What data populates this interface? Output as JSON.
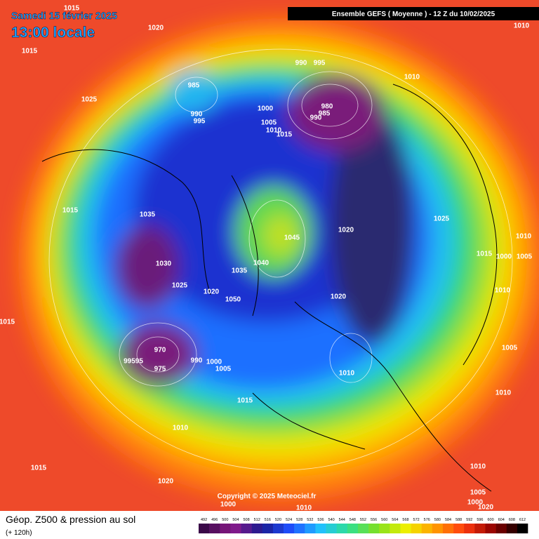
{
  "header": {
    "date": "Samedi 15 février 2025",
    "time": "13:00 locale",
    "model": "Ensemble GEFS  ( Moyenne )  -  12 Z du 10/02/2025"
  },
  "copyright": "Copyright © 2025 Meteociel.fr",
  "footer": {
    "title": "Géop. Z500 & pression au sol",
    "lead": "(+ 120h)"
  },
  "isobars": [
    "1015",
    "1020",
    "1015",
    "1025",
    "985",
    "990",
    "995",
    "990",
    "995",
    "1010",
    "1010",
    "1000",
    "1005",
    "1010",
    "1015",
    "980",
    "985",
    "990",
    "1015",
    "1035",
    "1045",
    "1020",
    "1025",
    "1015",
    "1000",
    "1005",
    "1010",
    "1030",
    "1040",
    "1035",
    "1025",
    "1020",
    "1050",
    "1020",
    "1010",
    "970",
    "99595",
    "975",
    "990",
    "1000",
    "1005",
    "1010",
    "1005",
    "1010",
    "1015",
    "1010",
    "1015",
    "1020",
    "1010",
    "1005",
    "1000",
    "1000",
    "1010",
    "1015",
    "1020"
  ],
  "scale": {
    "values": [
      492,
      496,
      500,
      504,
      508,
      512,
      516,
      520,
      524,
      528,
      532,
      536,
      540,
      544,
      548,
      552,
      556,
      560,
      564,
      568,
      572,
      576,
      580,
      584,
      588,
      592,
      596,
      600,
      604,
      608,
      612
    ]
  }
}
